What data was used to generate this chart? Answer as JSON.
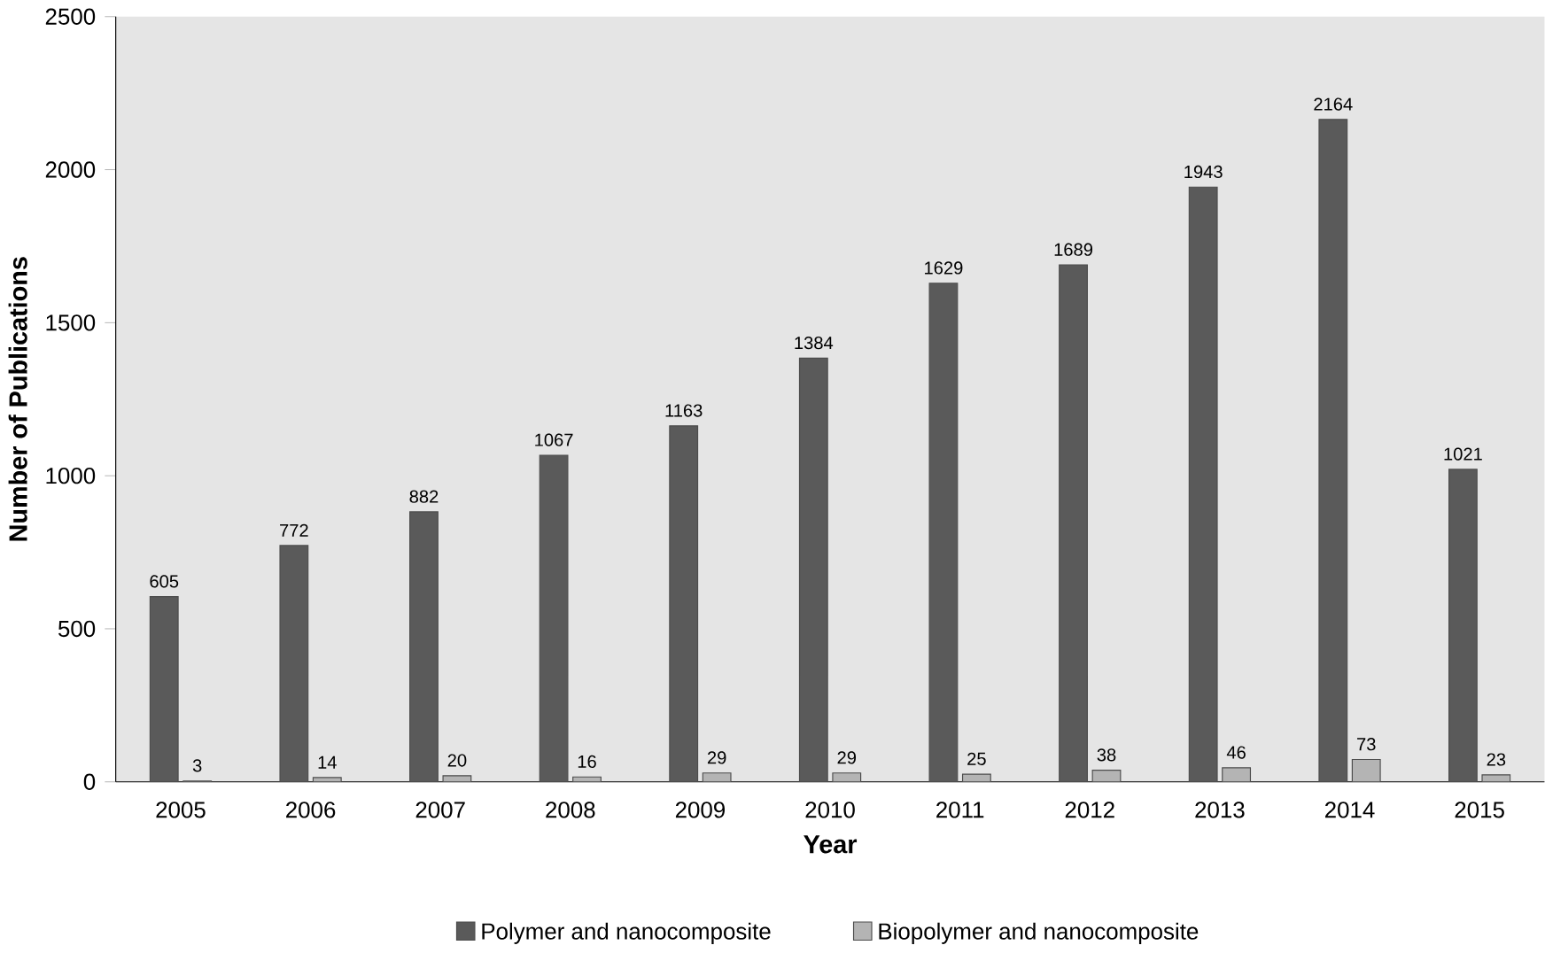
{
  "chart_data": {
    "type": "bar",
    "xlabel": "Year",
    "ylabel": "Number of Publications",
    "categories": [
      "2005",
      "2006",
      "2007",
      "2008",
      "2009",
      "2010",
      "2011",
      "2012",
      "2013",
      "2014",
      "2015"
    ],
    "series": [
      {
        "name": "Polymer and nanocomposite",
        "color": "#5a5a5a",
        "values": [
          605,
          772,
          882,
          1067,
          1163,
          1384,
          1629,
          1689,
          1943,
          2164,
          1021
        ]
      },
      {
        "name": "Biopolymer and nanocomposite",
        "color": "#b4b4b4",
        "values": [
          3,
          14,
          20,
          16,
          29,
          29,
          25,
          38,
          46,
          73,
          23
        ]
      }
    ],
    "ylim": [
      0,
      2500
    ],
    "yticks": [
      0,
      500,
      1000,
      1500,
      2000,
      2500
    ],
    "grid": false,
    "legend": "bottom",
    "data_labels": true
  }
}
